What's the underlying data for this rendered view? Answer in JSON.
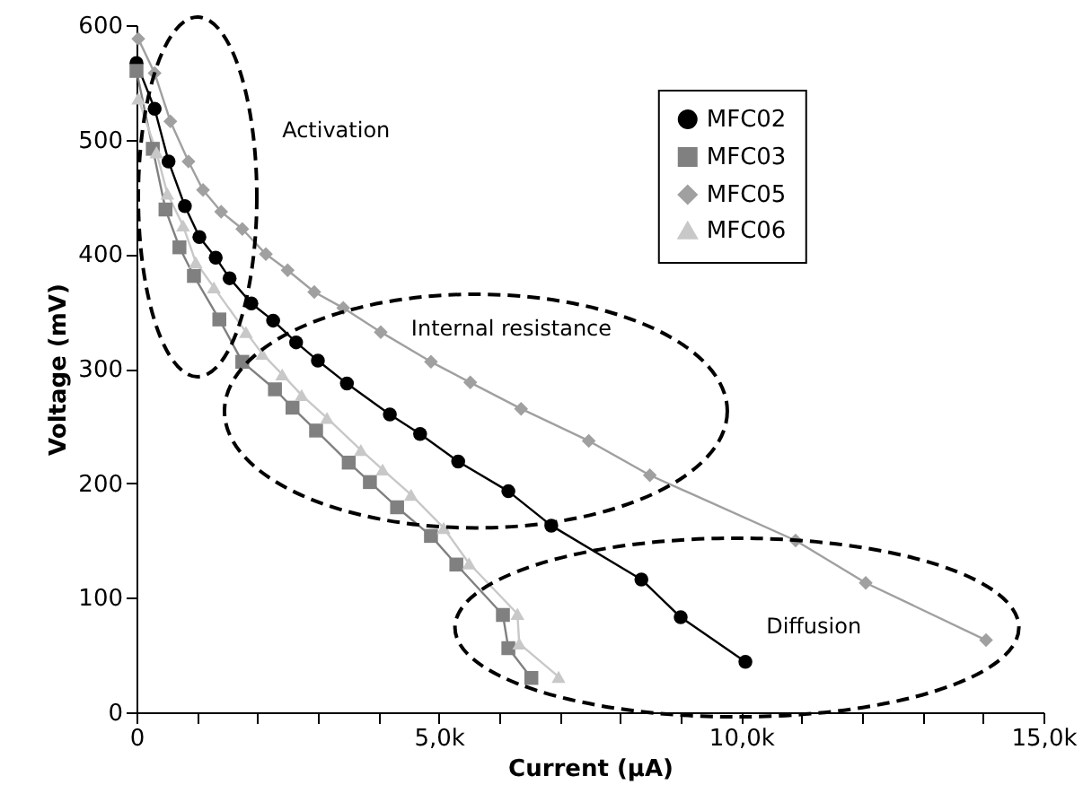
{
  "chart_data": {
    "type": "line",
    "xlabel": "Current (µA)",
    "ylabel": "Voltage (mV)",
    "xlim": [
      0,
      15000
    ],
    "ylim": [
      0,
      600
    ],
    "xticks": [
      0,
      {
        "value": 1000,
        "label": null
      },
      {
        "value": 2000,
        "label": null
      },
      {
        "value": 3000,
        "label": null
      },
      {
        "value": 4000,
        "label": null
      },
      {
        "value": 5000,
        "label": "5,0k"
      },
      {
        "value": 6000,
        "label": null
      },
      {
        "value": 7000,
        "label": null
      },
      {
        "value": 8000,
        "label": null
      },
      {
        "value": 9000,
        "label": null
      },
      {
        "value": 10000,
        "label": "10,0k"
      },
      {
        "value": 11000,
        "label": null
      },
      {
        "value": 12000,
        "label": null
      },
      {
        "value": 13000,
        "label": null
      },
      {
        "value": 14000,
        "label": null
      },
      {
        "value": 15000,
        "label": "15,0k"
      }
    ],
    "yticks": [
      0,
      100,
      200,
      300,
      400,
      500,
      600
    ],
    "grid": false,
    "legend": "top right",
    "line_style": "solid",
    "series": [
      {
        "name": "MFC02",
        "color": "#000000",
        "marker": "circle",
        "x": [
          0,
          300,
          530,
          800,
          1040,
          1310,
          1540,
          1900,
          2260,
          2640,
          3000,
          3480,
          4190,
          4690,
          5320,
          6150,
          6860,
          8350,
          9000,
          10070
        ],
        "values": [
          567,
          527,
          481,
          442,
          415,
          397,
          379,
          357,
          342,
          323,
          307,
          287,
          260,
          243,
          219,
          193,
          163,
          116,
          83,
          44
        ]
      },
      {
        "name": "MFC03",
        "color": "#808080",
        "marker": "square",
        "x": [
          0,
          270,
          480,
          710,
          950,
          1370,
          1750,
          2290,
          2580,
          2970,
          3510,
          3860,
          4310,
          4870,
          5290,
          6060,
          6150,
          6530
        ],
        "values": [
          560,
          492,
          439,
          406,
          381,
          343,
          306,
          282,
          266,
          246,
          218,
          201,
          179,
          154,
          129,
          85,
          56,
          30
        ]
      },
      {
        "name": "MFC05",
        "color": "#a0a0a0",
        "marker": "diamond",
        "x": [
          30,
          300,
          560,
          860,
          1100,
          1400,
          1750,
          2140,
          2500,
          2940,
          3420,
          4040,
          4870,
          5520,
          6360,
          7480,
          8490,
          10900,
          12060,
          14050
        ],
        "values": [
          588,
          558,
          516,
          481,
          456,
          437,
          422,
          400,
          386,
          367,
          353,
          332,
          306,
          288,
          265,
          237,
          207,
          150,
          113,
          63
        ]
      },
      {
        "name": "MFC06",
        "color": "#c8c8c8",
        "marker": "triangle",
        "x": [
          30,
          330,
          510,
          770,
          980,
          1280,
          1810,
          2080,
          2410,
          2730,
          3150,
          3710,
          4070,
          4540,
          5080,
          5500,
          6300,
          6330,
          6980
        ],
        "values": [
          536,
          489,
          453,
          425,
          393,
          371,
          332,
          313,
          295,
          277,
          257,
          229,
          212,
          190,
          161,
          130,
          86,
          60,
          31
        ]
      }
    ],
    "annotations": [
      "Activation",
      "Internal resistance",
      "Diffusion"
    ]
  }
}
